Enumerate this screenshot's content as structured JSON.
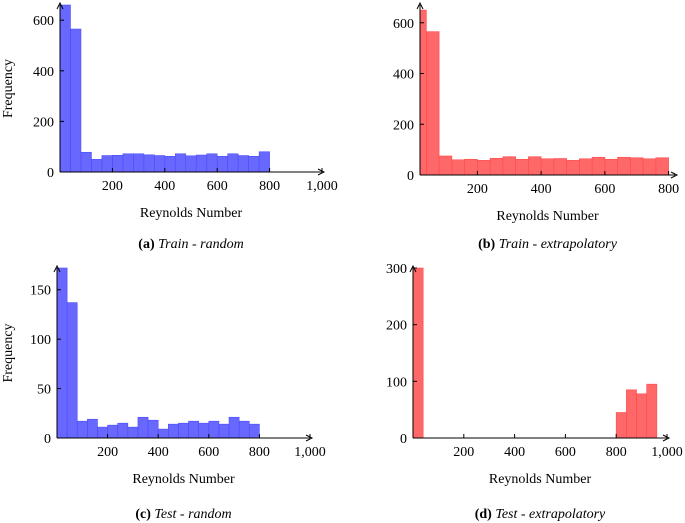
{
  "chart_data": [
    {
      "type": "bar",
      "caption_letter": "(a)",
      "caption_title": "Train - random",
      "xlabel": "Reynolds Number",
      "ylabel": "Frequency",
      "xlim": [
        0,
        1000
      ],
      "ylim": [
        0,
        660
      ],
      "xticks": [
        200,
        400,
        600,
        800,
        1000
      ],
      "xtick_labels": [
        "200",
        "400",
        "600",
        "800",
        "1,000"
      ],
      "yticks": [
        0,
        200,
        400,
        600
      ],
      "yticks_labels": [
        "0",
        "200",
        "400",
        "600"
      ],
      "color": "#4d4dff",
      "bin_width": 40,
      "bins_start": 20,
      "values": [
        660,
        565,
        78,
        50,
        65,
        66,
        72,
        72,
        68,
        65,
        62,
        72,
        64,
        67,
        72,
        62,
        72,
        65,
        62,
        80
      ]
    },
    {
      "type": "bar",
      "caption_letter": "(b)",
      "caption_title": "Train - extrapolatory",
      "xlabel": "Reynolds Number",
      "ylabel": "",
      "xlim": [
        20,
        820
      ],
      "ylim": [
        0,
        670
      ],
      "xticks": [
        200,
        400,
        600,
        800
      ],
      "xtick_labels": [
        "200",
        "400",
        "600",
        "800"
      ],
      "yticks": [
        0,
        200,
        400,
        600
      ],
      "yticks_labels": [
        "0",
        "200",
        "400",
        "600"
      ],
      "color": "#ff4d4d",
      "bin_width": 40,
      "bins_start": 20,
      "values": [
        650,
        565,
        75,
        60,
        62,
        58,
        66,
        72,
        62,
        72,
        64,
        65,
        58,
        64,
        70,
        62,
        70,
        68,
        64,
        68
      ]
    },
    {
      "type": "bar",
      "caption_letter": "(c)",
      "caption_title": "Test - random",
      "xlabel": "Reynolds Number",
      "ylabel": "Frequency",
      "xlim": [
        0,
        1000
      ],
      "ylim": [
        0,
        172
      ],
      "xticks": [
        200,
        400,
        600,
        800,
        1000
      ],
      "xtick_labels": [
        "200",
        "400",
        "600",
        "800",
        "1,000"
      ],
      "yticks": [
        0,
        50,
        100,
        150
      ],
      "yticks_labels": [
        "0",
        "50",
        "100",
        "150"
      ],
      "color": "#4d4dff",
      "bin_width": 40,
      "bins_start": 20,
      "values": [
        172,
        137,
        17,
        19,
        11,
        13,
        15,
        11,
        21,
        18,
        9,
        14,
        15,
        17,
        15,
        17,
        14,
        21,
        17,
        14
      ]
    },
    {
      "type": "bar",
      "caption_letter": "(d)",
      "caption_title": "Test - extrapolatory",
      "xlabel": "Reynolds Number",
      "ylabel": "",
      "xlim": [
        0,
        1000
      ],
      "ylim": [
        0,
        300
      ],
      "xticks": [
        200,
        400,
        600,
        800,
        1000
      ],
      "xtick_labels": [
        "200",
        "400",
        "600",
        "800",
        "1,000"
      ],
      "yticks": [
        0,
        100,
        200,
        300
      ],
      "yticks_labels": [
        "0",
        "100",
        "200",
        "300"
      ],
      "color": "#ff4d4d",
      "bin_width": 40,
      "bins_start": 20,
      "values": [
        300,
        0,
        0,
        0,
        0,
        0,
        0,
        0,
        0,
        0,
        0,
        0,
        0,
        0,
        0,
        0,
        0,
        0,
        0,
        0,
        45,
        85,
        78,
        95
      ]
    }
  ]
}
